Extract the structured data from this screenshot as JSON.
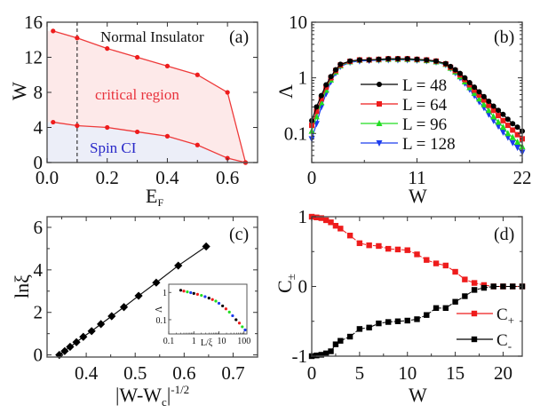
{
  "chart_data": [
    {
      "id": "a",
      "type": "line",
      "panel_label": "(a)",
      "xlabel": "E",
      "xlabel_sub": "F",
      "ylabel": "W",
      "xlim": [
        0.0,
        0.7
      ],
      "ylim": [
        0,
        16
      ],
      "xticks": [
        0.0,
        0.2,
        0.4,
        0.6
      ],
      "xtick_labels": [
        "0.0",
        "0.2",
        "0.4",
        "0.6"
      ],
      "xminor": [
        0.1,
        0.3,
        0.5
      ],
      "yticks": [
        0,
        4,
        8,
        12,
        16
      ],
      "ytick_labels": [
        "0",
        "4",
        "8",
        "12",
        "16"
      ],
      "series": [
        {
          "name": "upper boundary",
          "color": "#ee3a3a",
          "x": [
            0.02,
            0.1,
            0.2,
            0.3,
            0.4,
            0.5,
            0.6,
            0.66
          ],
          "y": [
            15.0,
            14.2,
            13.0,
            12.0,
            11.0,
            10.0,
            8.0,
            0.0
          ]
        },
        {
          "name": "lower boundary",
          "color": "#ee3a3a",
          "x": [
            0.02,
            0.1,
            0.2,
            0.3,
            0.4,
            0.5,
            0.6,
            0.66
          ],
          "y": [
            4.6,
            4.2,
            4.0,
            3.5,
            3.0,
            2.0,
            0.5,
            0.0
          ]
        }
      ],
      "vline_dashed_x": 0.1,
      "regions": [
        {
          "name": "critical region",
          "fill": "#fde9e9",
          "text_color": "#e8323c"
        },
        {
          "name": "Spin CI",
          "fill": "#eceef8",
          "text_color": "#2828c8"
        }
      ],
      "annotations": [
        "Normal Insulator",
        "critical region",
        "Spin CI"
      ]
    },
    {
      "id": "b",
      "type": "line",
      "panel_label": "(b)",
      "xlabel": "W",
      "ylabel": "Λ",
      "xlim": [
        0,
        22
      ],
      "ylim": [
        0.03,
        10
      ],
      "yscale": "log",
      "xticks": [
        0,
        11,
        22
      ],
      "xtick_labels": [
        "0",
        "11",
        "22"
      ],
      "xminor": [
        5.5,
        16.5
      ],
      "yticks": [
        0.1,
        1,
        10
      ],
      "ytick_labels": [
        "0.1",
        "1",
        "10"
      ],
      "x": [
        0,
        0.5,
        1,
        1.5,
        2,
        2.5,
        3,
        4,
        5,
        6,
        7,
        8,
        9,
        10,
        11,
        12,
        13,
        14,
        14.5,
        15,
        15.5,
        16,
        16.5,
        17,
        17.5,
        18,
        18.5,
        19,
        19.5,
        20,
        20.5,
        21,
        21.5,
        22
      ],
      "series": [
        {
          "name": "L = 48",
          "color": "#000000",
          "marker": "circle",
          "values": [
            0.17,
            0.3,
            0.48,
            0.75,
            1.05,
            1.4,
            1.75,
            2.0,
            2.1,
            2.1,
            2.15,
            2.2,
            2.2,
            2.2,
            2.15,
            2.1,
            2.0,
            1.8,
            1.6,
            1.4,
            1.2,
            1.0,
            0.82,
            0.68,
            0.56,
            0.46,
            0.38,
            0.31,
            0.26,
            0.22,
            0.18,
            0.15,
            0.13,
            0.11
          ]
        },
        {
          "name": "L = 64",
          "color": "#ee1c1c",
          "marker": "square",
          "values": [
            0.14,
            0.25,
            0.42,
            0.68,
            1.0,
            1.35,
            1.7,
            1.98,
            2.1,
            2.1,
            2.15,
            2.2,
            2.2,
            2.2,
            2.15,
            2.1,
            2.0,
            1.78,
            1.55,
            1.35,
            1.13,
            0.93,
            0.75,
            0.6,
            0.49,
            0.4,
            0.32,
            0.26,
            0.21,
            0.17,
            0.14,
            0.115,
            0.095,
            0.08
          ]
        },
        {
          "name": "L = 96",
          "color": "#22dd22",
          "marker": "triangle-up",
          "values": [
            0.11,
            0.2,
            0.36,
            0.6,
            0.92,
            1.28,
            1.65,
            1.95,
            2.08,
            2.1,
            2.12,
            2.15,
            2.15,
            2.15,
            2.12,
            2.05,
            1.95,
            1.75,
            1.5,
            1.28,
            1.05,
            0.85,
            0.67,
            0.53,
            0.42,
            0.33,
            0.26,
            0.2,
            0.16,
            0.13,
            0.1,
            0.085,
            0.07,
            0.058
          ]
        },
        {
          "name": "L = 128",
          "color": "#1c3cee",
          "marker": "triangle-down",
          "values": [
            0.08,
            0.15,
            0.3,
            0.52,
            0.85,
            1.22,
            1.6,
            1.9,
            2.0,
            2.05,
            2.07,
            2.1,
            2.1,
            2.1,
            2.07,
            2.02,
            1.92,
            1.72,
            1.47,
            1.23,
            1.0,
            0.8,
            0.62,
            0.48,
            0.37,
            0.29,
            0.22,
            0.17,
            0.135,
            0.105,
            0.085,
            0.068,
            0.056,
            0.046
          ]
        }
      ],
      "legend": "center"
    },
    {
      "id": "c",
      "type": "line",
      "panel_label": "(c)",
      "xlabel": "|W-W",
      "xlabel_sub": "c",
      "xlabel_tail": "|",
      "xlabel_sup": "-1/2",
      "ylabel": "lnξ",
      "xlim": [
        0.32,
        0.75
      ],
      "ylim": [
        -0.1,
        6.5
      ],
      "xticks": [
        0.4,
        0.5,
        0.6,
        0.7
      ],
      "xtick_labels": [
        "0.4",
        "0.5",
        "0.6",
        "0.7"
      ],
      "xminor": [
        0.35,
        0.45,
        0.55,
        0.65
      ],
      "yticks": [
        0,
        2,
        4,
        6
      ],
      "ytick_labels": [
        "0",
        "2",
        "4",
        "6"
      ],
      "yminor": [
        1,
        3,
        5
      ],
      "series": [
        {
          "name": "lnξ",
          "color": "#000000",
          "marker": "diamond",
          "x": [
            0.345,
            0.356,
            0.367,
            0.38,
            0.394,
            0.411,
            0.43,
            0.452,
            0.477,
            0.507,
            0.543,
            0.588,
            0.645
          ],
          "y": [
            0.0,
            0.18,
            0.38,
            0.6,
            0.85,
            1.12,
            1.45,
            1.82,
            2.25,
            2.78,
            3.4,
            4.2,
            5.1
          ]
        }
      ],
      "inset": {
        "type": "scatter",
        "xlabel": "L/ξ",
        "ylabel": "Λ",
        "xscale": "log",
        "yscale": "log",
        "xlim": [
          0.1,
          130
        ],
        "ylim": [
          0.03,
          2
        ],
        "xticks": [
          0.1,
          1,
          10,
          100
        ],
        "xtick_labels": [
          "0.1",
          "1",
          "",
          "100"
        ],
        "xtick_label_10": "10",
        "yticks": [
          0.1,
          1
        ],
        "ytick_labels": [
          "0.1",
          "1"
        ],
        "colors": [
          "#000000",
          "#ee1c1c",
          "#22dd22",
          "#1c3cee"
        ],
        "points_x": [
          0.3,
          0.4,
          0.55,
          0.75,
          1.0,
          1.4,
          2.0,
          2.8,
          4.0,
          5.5,
          7.5,
          10,
          14,
          19,
          26,
          35,
          48,
          65,
          85,
          110
        ],
        "points_y": [
          1.2,
          1.12,
          1.05,
          0.98,
          0.92,
          0.85,
          0.78,
          0.7,
          0.62,
          0.55,
          0.48,
          0.4,
          0.32,
          0.25,
          0.19,
          0.14,
          0.1,
          0.075,
          0.055,
          0.042
        ]
      }
    },
    {
      "id": "d",
      "type": "line",
      "panel_label": "(d)",
      "xlabel": "W",
      "ylabel": "C",
      "ylabel_sub": "±",
      "xlim": [
        0,
        22
      ],
      "ylim": [
        -1,
        1
      ],
      "xticks": [
        0,
        5,
        10,
        15,
        20
      ],
      "xtick_labels": [
        "0",
        "5",
        "10",
        "15",
        "20"
      ],
      "xminor": [
        2.5,
        7.5,
        12.5,
        17.5
      ],
      "yticks": [
        -1,
        0,
        1
      ],
      "ytick_labels": [
        "-1",
        "0",
        "1"
      ],
      "yminor": [
        -0.5,
        0.5
      ],
      "x": [
        0,
        0.5,
        1,
        1.5,
        2,
        2.5,
        3,
        4,
        5,
        6,
        7,
        8,
        9,
        10,
        11,
        12,
        13,
        14,
        15,
        16,
        17,
        18,
        19,
        20,
        21,
        22
      ],
      "series": [
        {
          "name": "C+",
          "label": "C",
          "label_sub": "+",
          "color": "#ee1c1c",
          "marker": "square",
          "values": [
            1.0,
            0.99,
            0.98,
            0.95,
            0.92,
            0.87,
            0.83,
            0.73,
            0.62,
            0.59,
            0.58,
            0.54,
            0.53,
            0.52,
            0.46,
            0.38,
            0.33,
            0.3,
            0.21,
            0.1,
            0.05,
            0.02,
            0.0,
            0.0,
            0.0,
            0.0
          ]
        },
        {
          "name": "C-",
          "label": "C",
          "label_sub": "-",
          "color": "#000000",
          "marker": "square",
          "values": [
            -1.0,
            -0.99,
            -0.98,
            -0.96,
            -0.93,
            -0.83,
            -0.78,
            -0.72,
            -0.61,
            -0.59,
            -0.53,
            -0.51,
            -0.5,
            -0.49,
            -0.47,
            -0.41,
            -0.31,
            -0.31,
            -0.22,
            -0.14,
            -0.05,
            -0.02,
            0.0,
            0.0,
            0.0,
            0.0
          ]
        }
      ],
      "legend": "lower-right"
    }
  ]
}
